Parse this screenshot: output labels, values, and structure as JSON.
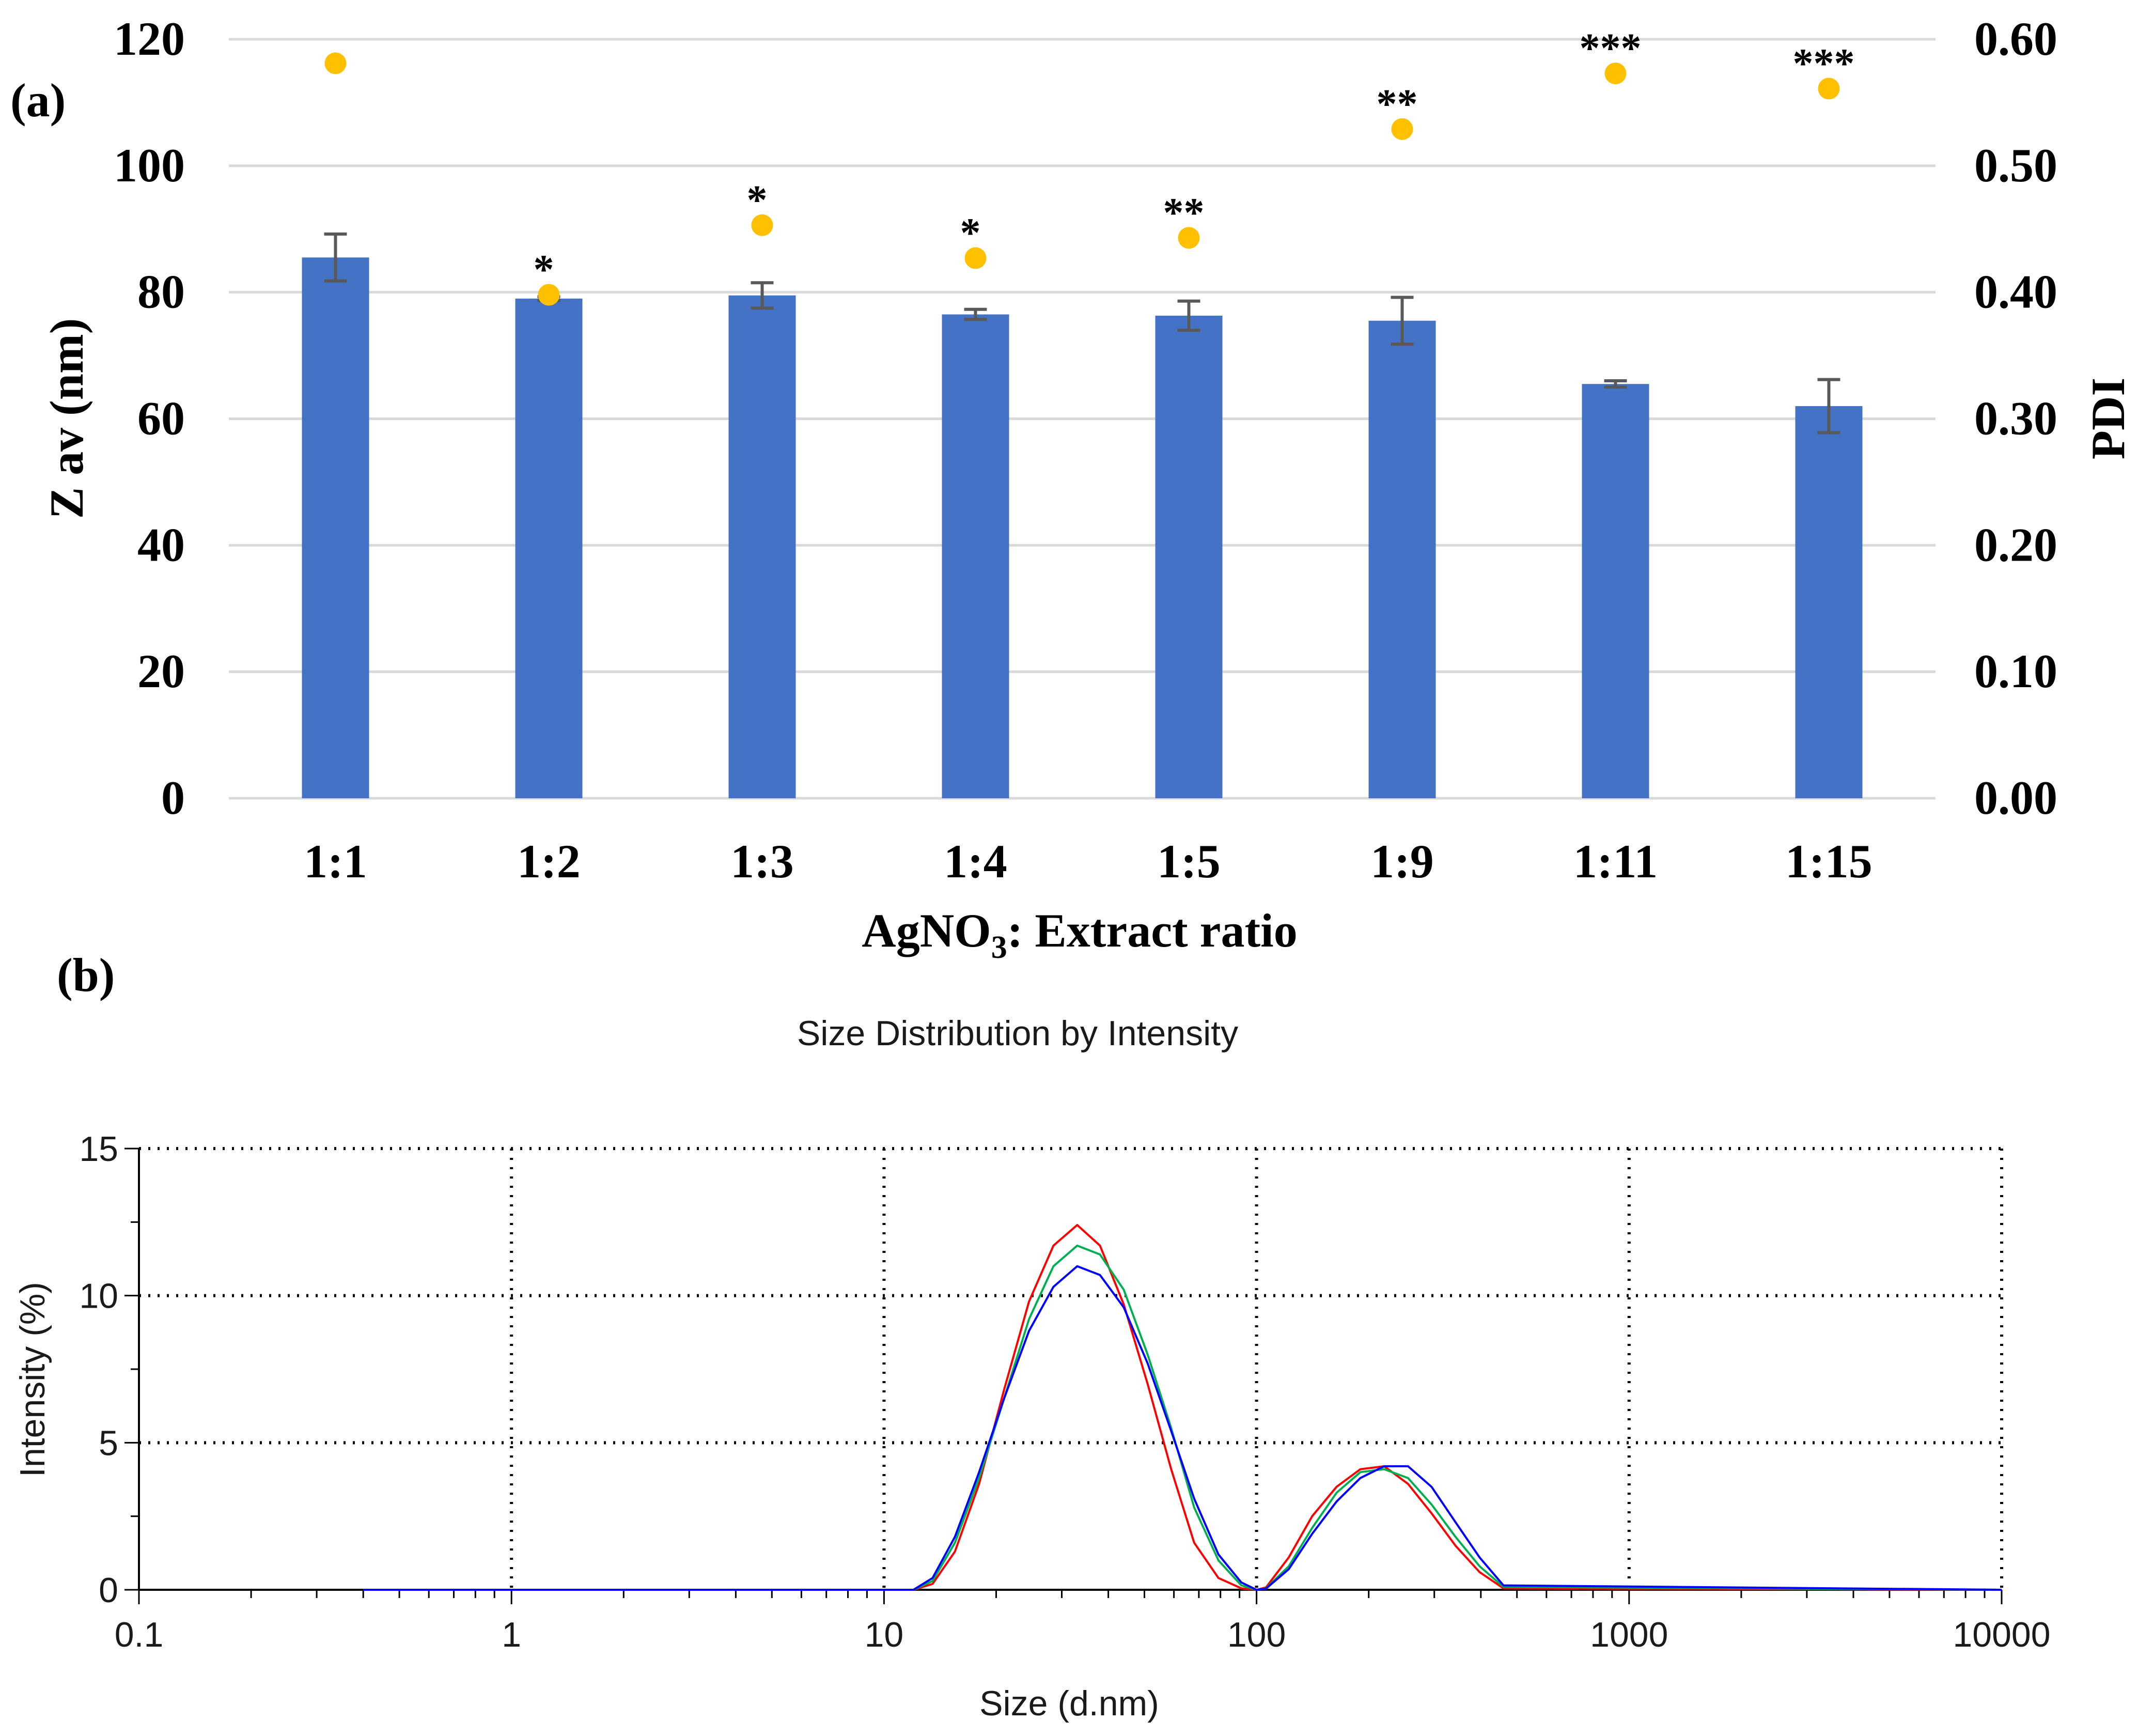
{
  "panel_labels": {
    "a": "(a)",
    "b": "(b)"
  },
  "chart_data": [
    {
      "id": "a",
      "type": "bar",
      "title": "",
      "xlabel_main": "AgNO",
      "xlabel_sub": "3",
      "xlabel_rest": ": Extract ratio",
      "ylabel": "Z av (nm)",
      "y2label": "PDI",
      "ylim": [
        0,
        120
      ],
      "y2lim": [
        0,
        0.6
      ],
      "yticks": [
        "0",
        "20",
        "40",
        "60",
        "80",
        "100",
        "120"
      ],
      "y2ticks": [
        "0.00",
        "0.10",
        "0.20",
        "0.30",
        "0.40",
        "0.50",
        "0.60"
      ],
      "grid": true,
      "categories": [
        "1:1",
        "1:2",
        "1:3",
        "1:4",
        "1:5",
        "1:9",
        "1:11",
        "1:15"
      ],
      "series": [
        {
          "type": "bar",
          "axis": "left",
          "color": "#4472c4",
          "values": [
            85.5,
            79.0,
            79.5,
            76.5,
            76.3,
            75.5,
            65.5,
            62.0
          ],
          "error": [
            3.7,
            0.3,
            2.0,
            0.8,
            2.3,
            3.7,
            0.5,
            4.2
          ]
        },
        {
          "type": "scatter",
          "axis": "right",
          "color": "#ffc000",
          "values": [
            0.581,
            0.398,
            0.453,
            0.427,
            0.443,
            0.529,
            0.573,
            0.561
          ]
        }
      ],
      "annotations": [
        "",
        "*",
        "*",
        "*",
        "**",
        "**",
        "***",
        "***"
      ]
    },
    {
      "id": "b",
      "type": "line",
      "title": "Size Distribution by Intensity",
      "xlabel": "Size (d.nm)",
      "ylabel": "Intensity (%)",
      "xscale": "log",
      "xlim": [
        0.1,
        10000
      ],
      "ylim": [
        0,
        15
      ],
      "xticks": [
        "0.1",
        "1",
        "10",
        "100",
        "1000",
        "10000"
      ],
      "yticks": [
        "0",
        "5",
        "10",
        "15"
      ],
      "grid": "dotted",
      "series": [
        {
          "color": "#ff0000",
          "x": [
            0.4,
            10,
            12,
            13.5,
            15.5,
            18,
            21,
            24.5,
            28.5,
            33,
            38,
            44,
            51,
            59,
            68,
            79,
            91,
            100,
            106,
            122,
            141,
            164,
            190,
            220,
            255,
            295,
            342,
            397,
            460,
            10000
          ],
          "y": [
            0,
            0,
            0,
            0.2,
            1.3,
            3.6,
            6.8,
            9.8,
            11.7,
            12.4,
            11.7,
            9.7,
            7.0,
            4.1,
            1.6,
            0.4,
            0.05,
            0,
            0.08,
            1.1,
            2.5,
            3.5,
            4.1,
            4.2,
            3.6,
            2.6,
            1.5,
            0.6,
            0.05,
            0
          ]
        },
        {
          "color": "#00b050",
          "x": [
            0.4,
            10,
            12,
            13.5,
            15.5,
            18,
            21,
            24.5,
            28.5,
            33,
            38,
            44,
            51,
            59,
            68,
            79,
            91,
            100,
            106,
            122,
            141,
            164,
            190,
            220,
            255,
            295,
            342,
            397,
            460,
            10000
          ],
          "y": [
            0,
            0,
            0,
            0.3,
            1.6,
            3.8,
            6.5,
            9.2,
            11.0,
            11.7,
            11.4,
            10.2,
            8.0,
            5.5,
            2.8,
            1.0,
            0.15,
            0,
            0.05,
            0.8,
            2.1,
            3.3,
            4.0,
            4.1,
            3.8,
            2.9,
            1.8,
            0.8,
            0.1,
            0
          ]
        },
        {
          "color": "#0000ff",
          "x": [
            0.4,
            10,
            12,
            13.5,
            15.5,
            18,
            21,
            24.5,
            28.5,
            33,
            38,
            44,
            51,
            59,
            68,
            79,
            91,
            100,
            106,
            122,
            141,
            164,
            190,
            220,
            255,
            295,
            342,
            397,
            460,
            10000
          ],
          "y": [
            0,
            0,
            0,
            0.4,
            1.8,
            4.0,
            6.5,
            8.8,
            10.3,
            11.0,
            10.7,
            9.6,
            7.7,
            5.4,
            3.1,
            1.2,
            0.25,
            0,
            0.04,
            0.7,
            1.9,
            3.0,
            3.8,
            4.2,
            4.2,
            3.5,
            2.3,
            1.1,
            0.15,
            0
          ]
        }
      ]
    }
  ]
}
